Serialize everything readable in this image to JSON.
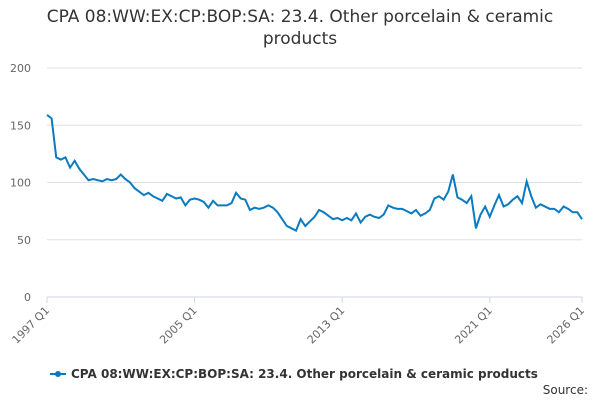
{
  "chart_data": {
    "type": "line",
    "title": "CPA 08:WW:EX:CP:BOP:SA: 23.4. Other porcelain & ceramic products",
    "categories": [
      "1997 Q1",
      null,
      null,
      null,
      null,
      null,
      null,
      null,
      null,
      null,
      null,
      null,
      null,
      null,
      null,
      null,
      null,
      null,
      null,
      null,
      null,
      null,
      null,
      null,
      null,
      null,
      null,
      null,
      null,
      null,
      null,
      null,
      "2005 Q1",
      null,
      null,
      null,
      null,
      null,
      null,
      null,
      null,
      null,
      null,
      null,
      null,
      null,
      null,
      null,
      null,
      null,
      null,
      null,
      null,
      null,
      null,
      null,
      null,
      null,
      null,
      null,
      null,
      null,
      null,
      null,
      "2013 Q1",
      null,
      null,
      null,
      null,
      null,
      null,
      null,
      null,
      null,
      null,
      null,
      null,
      null,
      null,
      null,
      null,
      null,
      null,
      null,
      null,
      null,
      null,
      null,
      null,
      null,
      null,
      null,
      null,
      null,
      null,
      null,
      "2021 Q1",
      null,
      null,
      null,
      null,
      null,
      null,
      null,
      null,
      null,
      null,
      null,
      null,
      null,
      null,
      null,
      null,
      null,
      null,
      null,
      "2026 Q1"
    ],
    "series": [
      {
        "name": "CPA 08:WW:EX:CP:BOP:SA: 23.4. Other porcelain & ceramic products",
        "color": "#0a7bbf",
        "values": [
          159,
          156,
          122,
          120,
          122,
          113,
          119,
          112,
          107,
          102,
          103,
          102,
          101,
          103,
          102,
          103,
          107,
          103,
          100,
          95,
          92,
          89,
          91,
          88,
          86,
          84,
          90,
          88,
          86,
          87,
          80,
          85,
          86,
          85,
          83,
          78,
          84,
          80,
          80,
          80,
          82,
          91,
          86,
          85,
          76,
          78,
          77,
          78,
          80,
          78,
          74,
          68,
          62,
          60,
          58,
          68,
          62,
          66,
          70,
          76,
          74,
          71,
          68,
          69,
          67,
          69,
          67,
          73,
          65,
          70,
          72,
          70,
          69,
          72,
          80,
          78,
          77,
          77,
          75,
          73,
          76,
          71,
          73,
          76,
          86,
          88,
          85,
          92,
          107,
          87,
          85,
          82,
          88,
          60,
          72,
          79,
          70,
          80,
          89,
          79,
          81,
          85,
          88,
          82,
          101,
          88,
          78,
          81,
          79,
          77,
          77,
          74,
          79,
          77,
          74,
          74,
          68
        ]
      }
    ],
    "ylim": [
      0,
      200
    ],
    "yticks": [
      0,
      50,
      100,
      150,
      200
    ],
    "grid": true,
    "source": "Source:"
  }
}
